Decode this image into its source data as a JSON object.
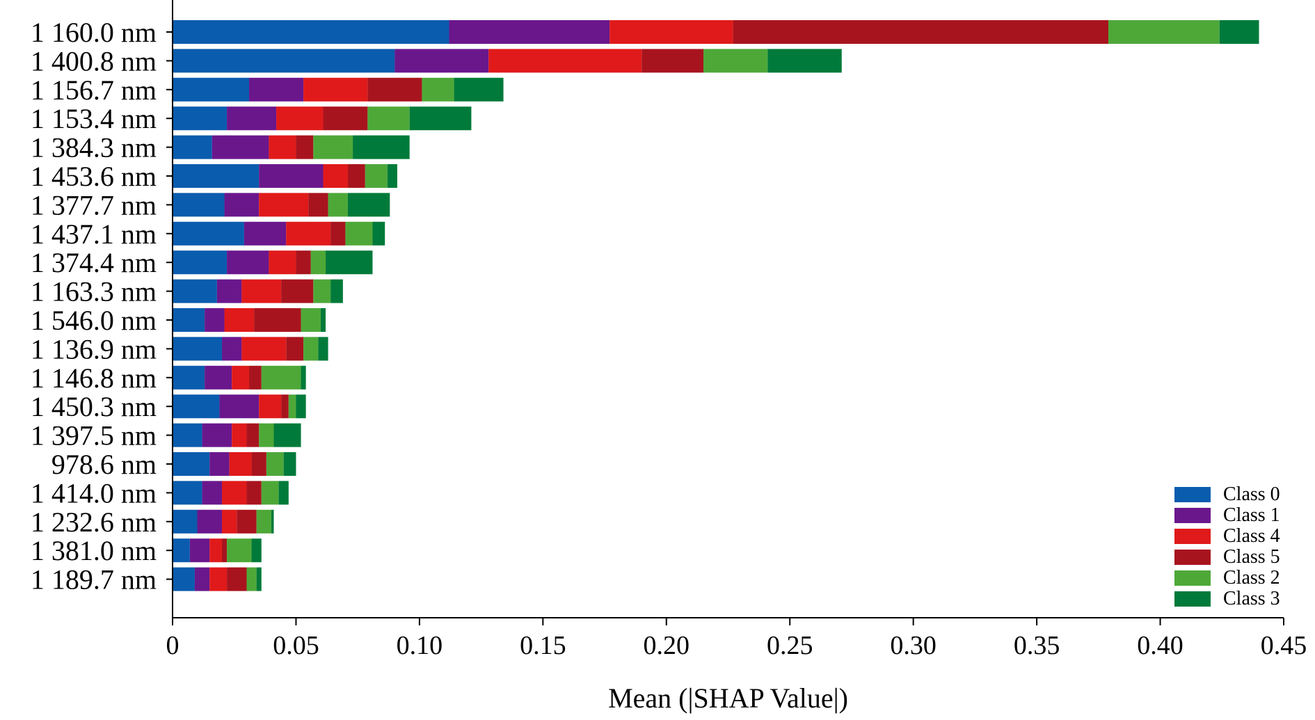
{
  "chart_data": {
    "type": "bar",
    "orientation": "horizontal",
    "stacked": true,
    "xlabel": "Mean (|SHAP Value|)",
    "ylabel": "",
    "xlim": [
      0,
      0.45
    ],
    "xticks": [
      0,
      0.05,
      0.1,
      0.15,
      0.2,
      0.25,
      0.3,
      0.35,
      0.4,
      0.45
    ],
    "xtick_labels": [
      "0",
      "0.05",
      "0.10",
      "0.15",
      "0.20",
      "0.25",
      "0.30",
      "0.35",
      "0.40",
      "0.45"
    ],
    "legend_position": "bottom-right",
    "categories": [
      "1 160.0 nm",
      "1 400.8 nm",
      "1 156.7 nm",
      "1 153.4 nm",
      "1 384.3 nm",
      "1 453.6 nm",
      "1 377.7 nm",
      "1 437.1 nm",
      "1 374.4 nm",
      "1 163.3 nm",
      "1 546.0 nm",
      "1 136.9 nm",
      "1 146.8 nm",
      "1 450.3 nm",
      "1 397.5 nm",
      "978.6 nm",
      "1 414.0 nm",
      "1 232.6 nm",
      "1 381.0 nm",
      "1 189.7 nm"
    ],
    "series": [
      {
        "name": "Class 0",
        "color": "#0a5cae",
        "values": [
          0.112,
          0.09,
          0.031,
          0.022,
          0.016,
          0.035,
          0.021,
          0.029,
          0.022,
          0.018,
          0.013,
          0.02,
          0.013,
          0.019,
          0.012,
          0.015,
          0.012,
          0.01,
          0.007,
          0.009
        ]
      },
      {
        "name": "Class 1",
        "color": "#6a178c",
        "values": [
          0.065,
          0.038,
          0.022,
          0.02,
          0.023,
          0.026,
          0.014,
          0.017,
          0.017,
          0.01,
          0.008,
          0.008,
          0.011,
          0.016,
          0.012,
          0.008,
          0.008,
          0.01,
          0.008,
          0.006
        ]
      },
      {
        "name": "Class 4",
        "color": "#e01a1a",
        "values": [
          0.05,
          0.062,
          0.026,
          0.019,
          0.011,
          0.01,
          0.02,
          0.018,
          0.011,
          0.016,
          0.012,
          0.018,
          0.007,
          0.009,
          0.006,
          0.009,
          0.01,
          0.006,
          0.005,
          0.007
        ]
      },
      {
        "name": "Class 5",
        "color": "#a8141e",
        "values": [
          0.152,
          0.025,
          0.022,
          0.018,
          0.007,
          0.007,
          0.008,
          0.006,
          0.006,
          0.013,
          0.019,
          0.007,
          0.005,
          0.003,
          0.005,
          0.006,
          0.006,
          0.008,
          0.002,
          0.008
        ]
      },
      {
        "name": "Class 2",
        "color": "#4ea838",
        "values": [
          0.045,
          0.026,
          0.013,
          0.017,
          0.016,
          0.009,
          0.008,
          0.011,
          0.006,
          0.007,
          0.008,
          0.006,
          0.016,
          0.003,
          0.006,
          0.007,
          0.007,
          0.006,
          0.01,
          0.004
        ]
      },
      {
        "name": "Class 3",
        "color": "#007a3a",
        "values": [
          0.016,
          0.03,
          0.02,
          0.025,
          0.023,
          0.004,
          0.017,
          0.005,
          0.019,
          0.005,
          0.002,
          0.004,
          0.002,
          0.004,
          0.011,
          0.005,
          0.004,
          0.001,
          0.004,
          0.002
        ]
      }
    ],
    "legend_order": [
      "Class 0",
      "Class 1",
      "Class 4",
      "Class 5",
      "Class 2",
      "Class 3"
    ]
  }
}
